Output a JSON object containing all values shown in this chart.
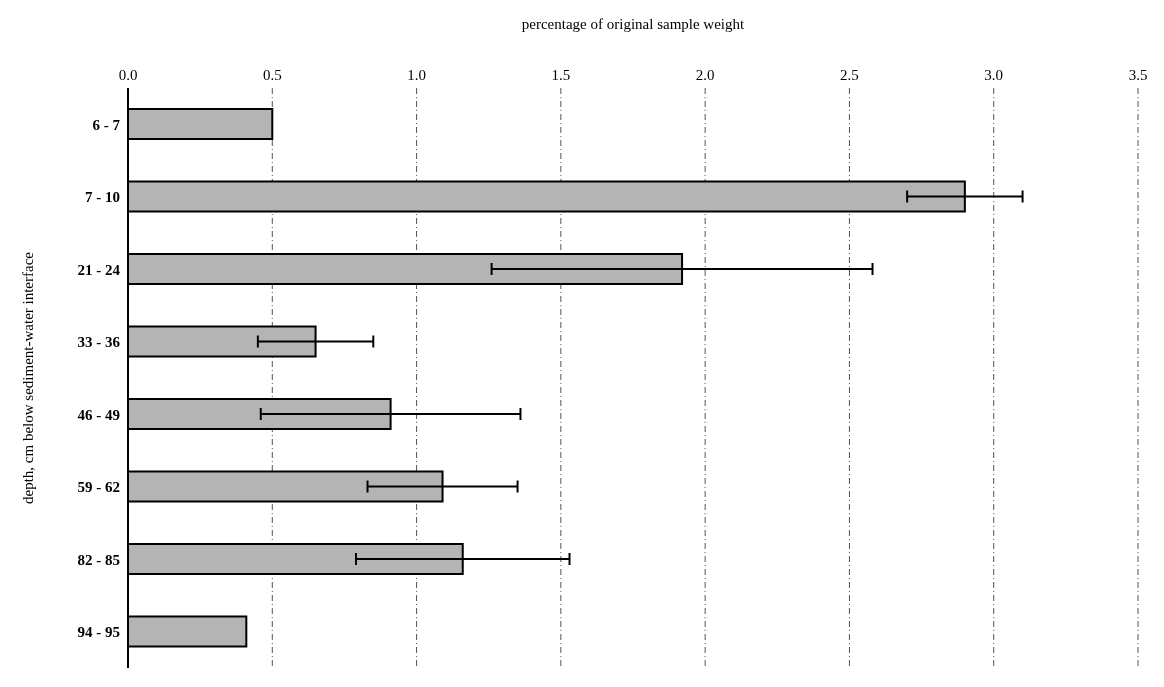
{
  "chart_data": {
    "type": "bar",
    "orientation": "horizontal",
    "xlabel": "percentage of original sample weight",
    "ylabel": "depth, cm below sediment-water interface",
    "categories": [
      "6 - 7",
      "7 - 10",
      "21 - 24",
      "33 - 36",
      "46 - 49",
      "59 - 62",
      "82 - 85",
      "94 - 95"
    ],
    "values": [
      0.5,
      2.9,
      1.92,
      0.65,
      0.91,
      1.09,
      1.16,
      0.41
    ],
    "errors": [
      null,
      0.2,
      0.66,
      0.2,
      0.45,
      0.26,
      0.37,
      null
    ],
    "color": "#b4b4b4",
    "xlim": [
      0,
      3.5
    ],
    "xticks": [
      {
        "value": 0,
        "label": "0.0"
      },
      0.5,
      {
        "value": 1,
        "label": "1.0"
      },
      1.5,
      {
        "value": 2,
        "label": "2.0"
      },
      2.5,
      {
        "value": 3,
        "label": "3.0"
      },
      3.5
    ],
    "grid": "x"
  }
}
